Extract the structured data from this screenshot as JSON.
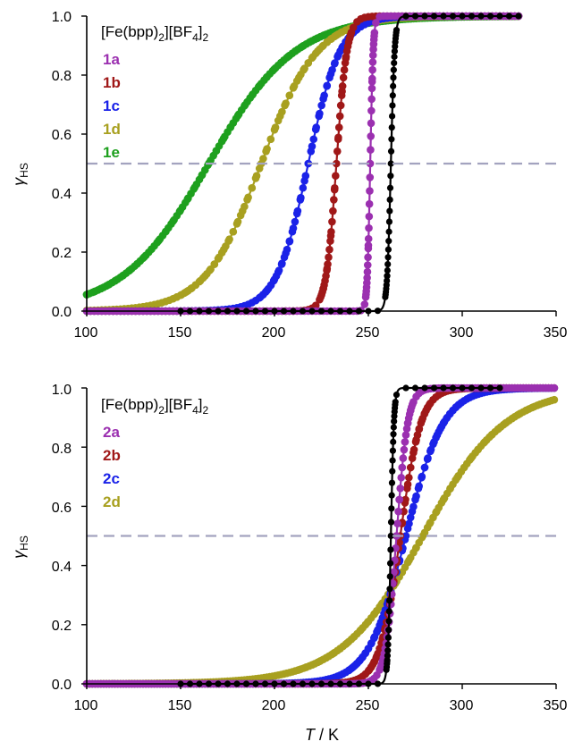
{
  "chart_data": [
    {
      "type": "line",
      "legend_title": {
        "main": "[Fe(bpp)",
        "sub1": "2",
        "mid": "][BF",
        "sub2": "4",
        "close": "]",
        "sub3": "2"
      },
      "ylabel": {
        "main": "γ",
        "sub": "HS"
      },
      "xlabel": "",
      "xlim": [
        100,
        350
      ],
      "ylim": [
        0,
        1.0
      ],
      "x_ticks": [
        100,
        150,
        200,
        250,
        300,
        350
      ],
      "y_ticks": [
        0.0,
        0.2,
        0.4,
        0.6,
        0.8,
        1.0
      ],
      "x_tick_labels": [
        "100",
        "150",
        "200",
        "250",
        "300",
        "350"
      ],
      "y_tick_labels": [
        "0.0",
        "0.2",
        "0.4",
        "0.6",
        "0.8",
        "1.0"
      ],
      "reference_line": {
        "y": 0.5,
        "style": "dashed",
        "color": "#a3a3bf"
      },
      "legend_position": "top-left",
      "series": [
        {
          "name": "1a",
          "color": "#9b30b0",
          "t_half": 251,
          "width": 0.8,
          "x_range": [
            100,
            330
          ],
          "marker_step": 2
        },
        {
          "name": "1b",
          "color": "#a01818",
          "t_half": 233,
          "width": 2.8,
          "x_range": [
            100,
            330
          ],
          "marker_step": 2
        },
        {
          "name": "1c",
          "color": "#1a22e8",
          "t_half": 218,
          "width": 8.5,
          "x_range": [
            100,
            330
          ],
          "marker_step": 2
        },
        {
          "name": "1d",
          "color": "#a8a020",
          "t_half": 193,
          "width": 15.0,
          "x_range": [
            100,
            330
          ],
          "marker_step": 2
        },
        {
          "name": "1e",
          "color": "#1ea01e",
          "t_half": 165,
          "width": 23.0,
          "x_range": [
            100,
            330
          ],
          "marker_step": 1.5
        },
        {
          "name": "",
          "color": "#000000",
          "t_half": 262,
          "width": 1.0,
          "x_range": [
            150,
            330
          ],
          "marker_step": 5
        }
      ]
    },
    {
      "type": "line",
      "legend_title": {
        "main": "[Fe(bpp)",
        "sub1": "2",
        "mid": "][BF",
        "sub2": "4",
        "close": "]",
        "sub3": "2"
      },
      "ylabel": {
        "main": "γ",
        "sub": "HS"
      },
      "xlabel": {
        "main": "T",
        "rest": " / K"
      },
      "xlim": [
        100,
        350
      ],
      "ylim": [
        0,
        1.0
      ],
      "x_ticks": [
        100,
        150,
        200,
        250,
        300,
        350
      ],
      "y_ticks": [
        0.0,
        0.2,
        0.4,
        0.6,
        0.8,
        1.0
      ],
      "x_tick_labels": [
        "100",
        "150",
        "200",
        "250",
        "300",
        "350"
      ],
      "y_tick_labels": [
        "0.0",
        "0.2",
        "0.4",
        "0.6",
        "0.8",
        "1.0"
      ],
      "reference_line": {
        "y": 0.5,
        "style": "dashed",
        "color": "#a3a3bf"
      },
      "legend_position": "top-left",
      "series": [
        {
          "name": "2d",
          "color": "#a8a020",
          "t_half": 279,
          "width": 22.0,
          "x_range": [
            100,
            350
          ],
          "marker_step": 1.5
        },
        {
          "name": "2c",
          "color": "#1a22e8",
          "t_half": 270,
          "width": 10.0,
          "x_range": [
            100,
            350
          ],
          "marker_step": 1.5
        },
        {
          "name": "2b",
          "color": "#a01818",
          "t_half": 267,
          "width": 5.5,
          "x_range": [
            100,
            350
          ],
          "marker_step": 1.5
        },
        {
          "name": "2a",
          "color": "#9b30b0",
          "t_half": 265,
          "width": 3.0,
          "x_range": [
            100,
            350
          ],
          "marker_step": 1.5
        },
        {
          "name": "",
          "color": "#000000",
          "t_half": 262,
          "width": 0.8,
          "x_range": [
            150,
            320
          ],
          "marker_step": 5
        }
      ],
      "legend_order": [
        "2a",
        "2b",
        "2c",
        "2d"
      ]
    }
  ]
}
